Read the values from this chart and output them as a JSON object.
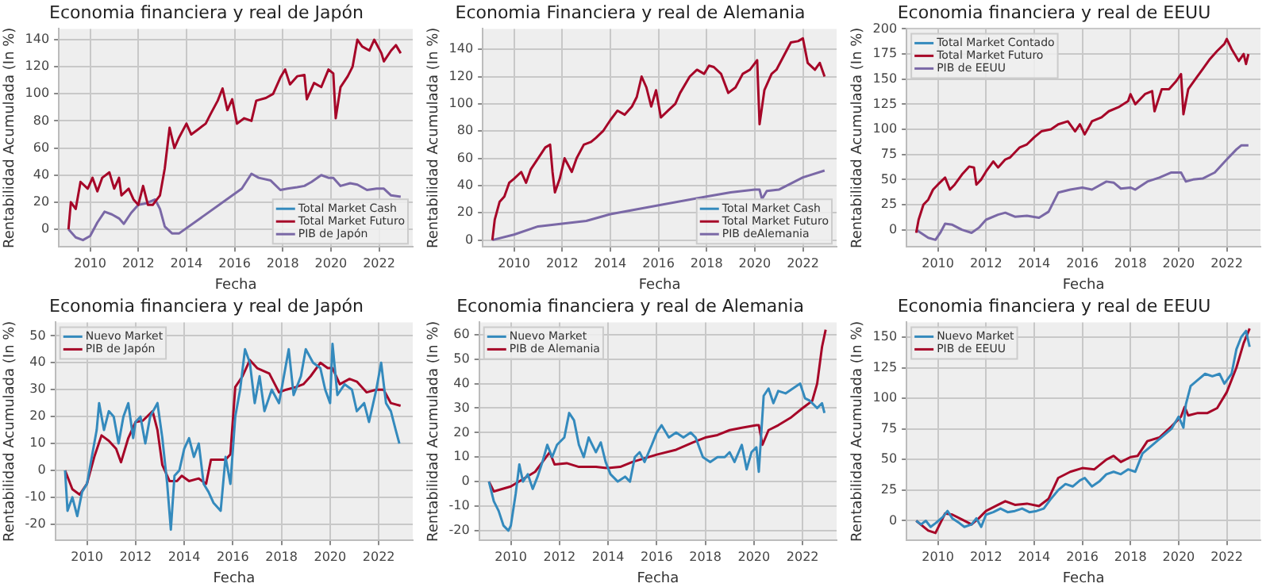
{
  "chart_data": [
    {
      "type": "line",
      "title": "Economia financiera y real de Japón",
      "xlabel": "Fecha",
      "ylabel": "Rentabilidad Acumulada (In %)",
      "xlim": [
        2008.7,
        2023.4
      ],
      "xticks": [
        2010,
        2012,
        2014,
        2016,
        2018,
        2020,
        2022
      ],
      "ylim": [
        -13,
        148
      ],
      "yticks": [
        0,
        20,
        40,
        60,
        80,
        100,
        120,
        140
      ],
      "grid": true,
      "legend": "bottom right",
      "marker": "none",
      "line_style": "solid",
      "series": [
        {
          "name": "Total Market Cash",
          "color": "#348abd"
        },
        {
          "name": "Total Market Futuro",
          "color": "#a60628",
          "x": [
            2009.1,
            2009.2,
            2009.4,
            2009.6,
            2009.9,
            2010.1,
            2010.3,
            2010.5,
            2010.8,
            2011.0,
            2011.2,
            2011.3,
            2011.6,
            2011.8,
            2012.0,
            2012.2,
            2012.4,
            2012.6,
            2012.9,
            2013.1,
            2013.3,
            2013.5,
            2013.7,
            2014.0,
            2014.2,
            2014.5,
            2014.8,
            2015.0,
            2015.3,
            2015.5,
            2015.7,
            2015.9,
            2016.1,
            2016.4,
            2016.7,
            2016.9,
            2017.3,
            2017.6,
            2017.9,
            2018.1,
            2018.3,
            2018.6,
            2018.9,
            2019.0,
            2019.3,
            2019.6,
            2019.9,
            2020.1,
            2020.2,
            2020.4,
            2020.7,
            2020.9,
            2021.1,
            2021.3,
            2021.6,
            2021.8,
            2022.1,
            2022.2,
            2022.5,
            2022.7,
            2022.9
          ],
          "values": [
            0,
            20,
            15,
            35,
            30,
            38,
            28,
            38,
            42,
            30,
            38,
            25,
            30,
            22,
            18,
            32,
            18,
            18,
            25,
            45,
            75,
            60,
            68,
            78,
            70,
            74,
            78,
            85,
            95,
            104,
            88,
            96,
            78,
            82,
            80,
            95,
            97,
            100,
            112,
            118,
            107,
            113,
            114,
            96,
            108,
            105,
            118,
            115,
            82,
            105,
            113,
            120,
            140,
            135,
            132,
            140,
            130,
            124,
            132,
            136,
            130
          ]
        },
        {
          "name": "PIB de Japón",
          "color": "#7a68a6",
          "x": [
            2009.1,
            2009.4,
            2009.7,
            2010.0,
            2010.3,
            2010.6,
            2010.9,
            2011.2,
            2011.4,
            2011.7,
            2012.0,
            2012.3,
            2012.7,
            2012.9,
            2013.1,
            2013.4,
            2013.7,
            2016.3,
            2016.7,
            2017.0,
            2017.5,
            2017.9,
            2018.2,
            2018.6,
            2018.9,
            2019.2,
            2019.6,
            2019.9,
            2020.1,
            2020.4,
            2020.8,
            2021.1,
            2021.5,
            2021.9,
            2022.2,
            2022.5,
            2022.9
          ],
          "values": [
            0,
            -6,
            -8,
            -5,
            5,
            13,
            11,
            8,
            4,
            12,
            18,
            19,
            22,
            15,
            2,
            -3,
            -3,
            30,
            41,
            38,
            36,
            29,
            30,
            31,
            32,
            35,
            40,
            38,
            38,
            32,
            34,
            33,
            29,
            30,
            30,
            25,
            24
          ]
        }
      ]
    },
    {
      "type": "line",
      "title": "Economia Financiera y real de Alemania",
      "xlabel": "Fecha",
      "ylabel": "Rentabilidad Acumulada (In %)",
      "xlim": [
        2008.7,
        2023.4
      ],
      "xticks": [
        2010,
        2012,
        2014,
        2016,
        2018,
        2020,
        2022
      ],
      "ylim": [
        -5,
        155
      ],
      "yticks": [
        0,
        20,
        40,
        60,
        80,
        100,
        120,
        140
      ],
      "grid": true,
      "legend": "bottom right",
      "marker": "none",
      "line_style": "solid",
      "series": [
        {
          "name": "Total Market Cash",
          "color": "#348abd"
        },
        {
          "name": "Total Market Futuro",
          "color": "#a60628",
          "x": [
            2009.1,
            2009.2,
            2009.4,
            2009.6,
            2009.8,
            2010.0,
            2010.3,
            2010.5,
            2010.7,
            2011.0,
            2011.3,
            2011.5,
            2011.6,
            2011.7,
            2011.9,
            2012.1,
            2012.4,
            2012.6,
            2012.9,
            2013.2,
            2013.4,
            2013.7,
            2014.0,
            2014.3,
            2014.6,
            2014.9,
            2015.1,
            2015.3,
            2015.5,
            2015.7,
            2015.9,
            2016.1,
            2016.4,
            2016.7,
            2016.9,
            2017.3,
            2017.6,
            2017.9,
            2018.1,
            2018.3,
            2018.6,
            2018.9,
            2019.2,
            2019.5,
            2019.8,
            2020.1,
            2020.2,
            2020.4,
            2020.7,
            2020.9,
            2021.2,
            2021.5,
            2021.8,
            2022.0,
            2022.2,
            2022.5,
            2022.7,
            2022.9
          ],
          "values": [
            0,
            15,
            28,
            32,
            42,
            45,
            50,
            42,
            52,
            60,
            68,
            70,
            50,
            35,
            45,
            60,
            50,
            60,
            70,
            72,
            75,
            80,
            88,
            95,
            92,
            98,
            105,
            120,
            112,
            98,
            110,
            90,
            95,
            100,
            108,
            120,
            125,
            122,
            128,
            127,
            122,
            108,
            112,
            122,
            125,
            132,
            85,
            110,
            122,
            125,
            135,
            145,
            146,
            148,
            130,
            125,
            130,
            120
          ]
        },
        {
          "name": "PIB deAlemania",
          "color": "#7a68a6",
          "x": [
            2009.1,
            2010.0,
            2011.0,
            2012.0,
            2013.0,
            2014.0,
            2018.0,
            2019.0,
            2020.0,
            2020.2,
            2020.3,
            2020.5,
            2021.0,
            2022.0,
            2022.9
          ],
          "values": [
            0,
            4,
            10,
            12,
            14,
            19,
            32,
            35,
            37,
            37,
            30,
            36,
            37,
            46,
            51
          ]
        }
      ]
    },
    {
      "type": "line",
      "title": "Economia financiera y real de EEUU",
      "xlabel": "Fecha",
      "ylabel": "Rentabilidad Acumulada (In %)",
      "xlim": [
        2008.7,
        2023.4
      ],
      "xticks": [
        2010,
        2012,
        2014,
        2016,
        2018,
        2020,
        2022
      ],
      "ylim": [
        -17,
        200
      ],
      "yticks": [
        0,
        25,
        50,
        75,
        100,
        125,
        150,
        175,
        200
      ],
      "grid": true,
      "legend": "top left",
      "marker": "none",
      "line_style": "solid",
      "series": [
        {
          "name": "Total Market Contado",
          "color": "#348abd"
        },
        {
          "name": "Total Market Futuro",
          "color": "#a60628",
          "x": [
            2009.1,
            2009.2,
            2009.4,
            2009.6,
            2009.8,
            2010.0,
            2010.3,
            2010.5,
            2010.7,
            2011.0,
            2011.3,
            2011.5,
            2011.6,
            2011.8,
            2012.0,
            2012.3,
            2012.5,
            2012.8,
            2013.0,
            2013.4,
            2013.7,
            2014.0,
            2014.3,
            2014.7,
            2015.0,
            2015.4,
            2015.7,
            2015.9,
            2016.1,
            2016.4,
            2016.8,
            2017.1,
            2017.5,
            2017.9,
            2018.0,
            2018.2,
            2018.6,
            2018.9,
            2019.0,
            2019.3,
            2019.6,
            2019.9,
            2020.1,
            2020.2,
            2020.4,
            2020.7,
            2021.0,
            2021.3,
            2021.6,
            2021.9,
            2022.0,
            2022.2,
            2022.5,
            2022.7,
            2022.8,
            2022.9
          ],
          "values": [
            -3,
            10,
            25,
            30,
            40,
            45,
            52,
            40,
            45,
            55,
            63,
            62,
            45,
            50,
            58,
            68,
            62,
            70,
            72,
            82,
            85,
            92,
            98,
            100,
            105,
            108,
            98,
            105,
            95,
            108,
            112,
            118,
            122,
            128,
            135,
            125,
            135,
            138,
            118,
            140,
            140,
            148,
            155,
            115,
            140,
            150,
            160,
            170,
            178,
            185,
            190,
            180,
            168,
            175,
            165,
            175
          ]
        },
        {
          "name": "PIB de EEUU",
          "color": "#7a68a6",
          "x": [
            2009.1,
            2009.6,
            2009.9,
            2010.1,
            2010.3,
            2010.6,
            2011.0,
            2011.4,
            2011.7,
            2012.0,
            2012.5,
            2012.8,
            2013.2,
            2013.7,
            2014.2,
            2014.6,
            2015.0,
            2015.5,
            2016.0,
            2016.4,
            2017.0,
            2017.3,
            2017.6,
            2018.0,
            2018.2,
            2018.7,
            2019.2,
            2019.7,
            2020.1,
            2020.3,
            2020.6,
            2021.0,
            2021.5,
            2022.0,
            2022.4,
            2022.6,
            2022.9
          ],
          "values": [
            0,
            -8,
            -10,
            -3,
            6,
            5,
            0,
            -3,
            2,
            10,
            15,
            17,
            13,
            14,
            12,
            18,
            37,
            40,
            42,
            40,
            48,
            47,
            41,
            42,
            40,
            48,
            52,
            57,
            57,
            48,
            50,
            51,
            57,
            70,
            80,
            84,
            84
          ]
        }
      ]
    },
    {
      "type": "line",
      "title": "Economia financiera y real de Japón",
      "xlabel": "Fecha",
      "ylabel": "Rentabilidad Acumulada (In %)",
      "xlim": [
        2008.7,
        2023.4
      ],
      "xticks": [
        2010,
        2012,
        2014,
        2016,
        2018,
        2020,
        2022
      ],
      "ylim": [
        -26,
        55
      ],
      "yticks": [
        -20,
        -10,
        0,
        10,
        20,
        30,
        40,
        50
      ],
      "grid": true,
      "legend": "top left",
      "marker": "none",
      "line_style": "solid",
      "series": [
        {
          "name": "Nuevo Market",
          "color": "#348abd",
          "x": [
            2009.1,
            2009.2,
            2009.4,
            2009.6,
            2009.8,
            2010.0,
            2010.2,
            2010.4,
            2010.5,
            2010.7,
            2010.9,
            2011.1,
            2011.3,
            2011.5,
            2011.7,
            2011.9,
            2012.0,
            2012.2,
            2012.4,
            2012.6,
            2012.9,
            2013.1,
            2013.3,
            2013.45,
            2013.6,
            2013.8,
            2014.0,
            2014.2,
            2014.4,
            2014.6,
            2014.8,
            2015.0,
            2015.2,
            2015.5,
            2015.7,
            2015.9,
            2016.1,
            2016.3,
            2016.5,
            2016.7,
            2016.9,
            2017.1,
            2017.3,
            2017.6,
            2017.9,
            2018.1,
            2018.3,
            2018.5,
            2018.8,
            2019.0,
            2019.3,
            2019.6,
            2019.8,
            2020.0,
            2020.1,
            2020.3,
            2020.6,
            2020.9,
            2021.1,
            2021.4,
            2021.6,
            2021.9,
            2022.1,
            2022.3,
            2022.5,
            2022.7,
            2022.85
          ],
          "values": [
            0,
            -15,
            -10,
            -17,
            -8,
            -5,
            5,
            15,
            25,
            15,
            22,
            20,
            10,
            20,
            25,
            12,
            18,
            20,
            10,
            20,
            25,
            12,
            -5,
            -22,
            -2,
            0,
            8,
            12,
            5,
            10,
            -5,
            -8,
            -12,
            -15,
            5,
            -5,
            20,
            30,
            45,
            40,
            25,
            35,
            22,
            30,
            25,
            35,
            45,
            28,
            35,
            45,
            40,
            38,
            30,
            25,
            47,
            28,
            32,
            30,
            22,
            25,
            18,
            30,
            40,
            25,
            22,
            15,
            10
          ]
        },
        {
          "name": "PIB de Japón",
          "color": "#a60628",
          "x": [
            2009.1,
            2009.4,
            2009.7,
            2010.0,
            2010.3,
            2010.6,
            2010.9,
            2011.2,
            2011.4,
            2011.7,
            2012.0,
            2012.3,
            2012.7,
            2012.9,
            2013.1,
            2013.4,
            2013.7,
            2013.9,
            2014.2,
            2014.6,
            2014.9,
            2015.1,
            2015.4,
            2015.7,
            2015.9,
            2016.1,
            2016.4,
            2016.7,
            2017.0,
            2017.5,
            2017.9,
            2018.2,
            2018.6,
            2018.9,
            2019.2,
            2019.6,
            2019.9,
            2020.1,
            2020.4,
            2020.8,
            2021.1,
            2021.5,
            2021.9,
            2022.2,
            2022.5,
            2022.9
          ],
          "values": [
            0,
            -7,
            -9,
            -5,
            5,
            13,
            11,
            8,
            3,
            12,
            18,
            18.5,
            22,
            15,
            2,
            -4,
            -4,
            -2,
            -4,
            -3,
            -5,
            4,
            4,
            4,
            6,
            31,
            35,
            41,
            38,
            36,
            29,
            30,
            31,
            32,
            35,
            40,
            38,
            38,
            32,
            34,
            33,
            29,
            30,
            30,
            25,
            24
          ]
        }
      ]
    },
    {
      "type": "line",
      "title": "Economia financiera y real de Alemania",
      "xlabel": "Fecha",
      "ylabel": "Rentabilidad Acumulada (In %)",
      "xlim": [
        2008.7,
        2023.4
      ],
      "xticks": [
        2010,
        2012,
        2014,
        2016,
        2018,
        2020,
        2022
      ],
      "ylim": [
        -24,
        65
      ],
      "yticks": [
        -20,
        -10,
        0,
        10,
        20,
        30,
        40,
        50,
        60
      ],
      "grid": true,
      "legend": "top left",
      "marker": "none",
      "line_style": "solid",
      "series": [
        {
          "name": "Nuevo Market",
          "color": "#348abd",
          "x": [
            2009.1,
            2009.3,
            2009.5,
            2009.7,
            2009.9,
            2010.0,
            2010.2,
            2010.35,
            2010.5,
            2010.7,
            2010.9,
            2011.1,
            2011.3,
            2011.5,
            2011.7,
            2011.9,
            2012.2,
            2012.4,
            2012.6,
            2012.8,
            2013.0,
            2013.2,
            2013.5,
            2013.7,
            2013.9,
            2014.1,
            2014.4,
            2014.7,
            2014.9,
            2015.1,
            2015.3,
            2015.5,
            2015.8,
            2016.0,
            2016.2,
            2016.5,
            2016.8,
            2017.1,
            2017.4,
            2017.6,
            2017.9,
            2018.2,
            2018.5,
            2018.8,
            2019.0,
            2019.2,
            2019.5,
            2019.7,
            2019.9,
            2020.1,
            2020.2,
            2020.4,
            2020.6,
            2020.8,
            2021.0,
            2021.3,
            2021.6,
            2021.9,
            2022.1,
            2022.3,
            2022.6,
            2022.8,
            2022.9
          ],
          "values": [
            0,
            -8,
            -12,
            -18,
            -20,
            -18,
            -5,
            7,
            0,
            3,
            -3,
            2,
            8,
            15,
            10,
            15,
            18,
            28,
            25,
            15,
            10,
            18,
            12,
            16,
            8,
            3,
            0,
            2,
            0,
            10,
            12,
            8,
            15,
            20,
            23,
            18,
            20,
            18,
            20,
            18,
            10,
            8,
            10,
            10,
            12,
            8,
            15,
            5,
            12,
            14,
            4,
            35,
            38,
            32,
            37,
            36,
            38,
            40,
            34,
            33,
            30,
            32,
            28
          ]
        },
        {
          "name": "PIB de Alemania",
          "color": "#a60628",
          "x": [
            2009.1,
            2009.3,
            2010.0,
            2011.0,
            2011.6,
            2011.8,
            2012.3,
            2012.8,
            2013.5,
            2014.0,
            2014.5,
            2015.0,
            2016.0,
            2016.8,
            2017.5,
            2018.0,
            2018.5,
            2019.0,
            2019.5,
            2020.1,
            2020.2,
            2020.35,
            2020.6,
            2021.0,
            2021.5,
            2022.0,
            2022.4,
            2022.6,
            2022.8,
            2022.95
          ],
          "values": [
            0,
            -4,
            -2,
            4,
            12,
            7,
            7.5,
            6,
            6,
            5.5,
            6,
            8,
            11,
            13,
            16,
            18,
            19,
            21,
            22,
            23,
            23,
            15,
            21,
            23,
            26,
            30,
            33,
            40,
            55,
            62
          ]
        }
      ]
    },
    {
      "type": "line",
      "title": "Economia financiera y real de EEUU",
      "xlabel": "Fecha",
      "ylabel": "Rentabilidad Acumulada (In %)",
      "xlim": [
        2008.7,
        2023.4
      ],
      "xticks": [
        2010,
        2012,
        2014,
        2016,
        2018,
        2020,
        2022
      ],
      "ylim": [
        -16,
        162
      ],
      "yticks": [
        0,
        25,
        50,
        75,
        100,
        125,
        150
      ],
      "grid": true,
      "legend": "top left",
      "marker": "none",
      "line_style": "solid",
      "series": [
        {
          "name": "Nuevo Market",
          "color": "#348abd",
          "x": [
            2009.1,
            2009.3,
            2009.5,
            2009.7,
            2009.9,
            2010.2,
            2010.4,
            2010.6,
            2010.9,
            2011.1,
            2011.4,
            2011.6,
            2011.8,
            2012.0,
            2012.3,
            2012.6,
            2012.9,
            2013.2,
            2013.5,
            2013.8,
            2014.1,
            2014.4,
            2014.7,
            2015.0,
            2015.3,
            2015.6,
            2015.9,
            2016.1,
            2016.4,
            2016.7,
            2017.0,
            2017.3,
            2017.6,
            2017.9,
            2018.2,
            2018.5,
            2018.8,
            2019.1,
            2019.4,
            2019.7,
            2020.0,
            2020.2,
            2020.3,
            2020.5,
            2020.8,
            2021.1,
            2021.4,
            2021.7,
            2021.9,
            2022.2,
            2022.4,
            2022.6,
            2022.8,
            2022.95
          ],
          "values": [
            0,
            -3,
            0,
            -5,
            -2,
            3,
            8,
            2,
            -2,
            -5,
            -3,
            2,
            -5,
            5,
            7,
            10,
            7,
            8,
            10,
            7,
            8,
            10,
            18,
            25,
            30,
            28,
            33,
            35,
            28,
            32,
            38,
            40,
            38,
            42,
            40,
            55,
            60,
            65,
            70,
            75,
            85,
            76,
            95,
            110,
            115,
            120,
            118,
            120,
            112,
            120,
            140,
            150,
            155,
            142
          ]
        },
        {
          "name": "PIB de EEUU",
          "color": "#a60628",
          "x": [
            2009.1,
            2009.6,
            2009.9,
            2010.1,
            2010.3,
            2010.6,
            2011.0,
            2011.4,
            2011.7,
            2012.0,
            2012.5,
            2012.8,
            2013.2,
            2013.7,
            2014.2,
            2014.6,
            2015.0,
            2015.5,
            2016.0,
            2016.5,
            2017.0,
            2017.3,
            2017.6,
            2018.0,
            2018.3,
            2018.7,
            2019.2,
            2019.7,
            2020.1,
            2020.25,
            2020.4,
            2020.8,
            2021.2,
            2021.6,
            2022.0,
            2022.4,
            2022.7,
            2022.95
          ],
          "values": [
            0,
            -8,
            -10,
            -2,
            6,
            5,
            1,
            -3,
            2,
            8,
            13,
            16,
            13,
            14,
            12,
            18,
            35,
            40,
            43,
            42,
            50,
            53,
            48,
            52,
            53,
            65,
            68,
            77,
            85,
            93,
            86,
            88,
            88,
            92,
            105,
            125,
            145,
            157
          ]
        }
      ]
    }
  ]
}
